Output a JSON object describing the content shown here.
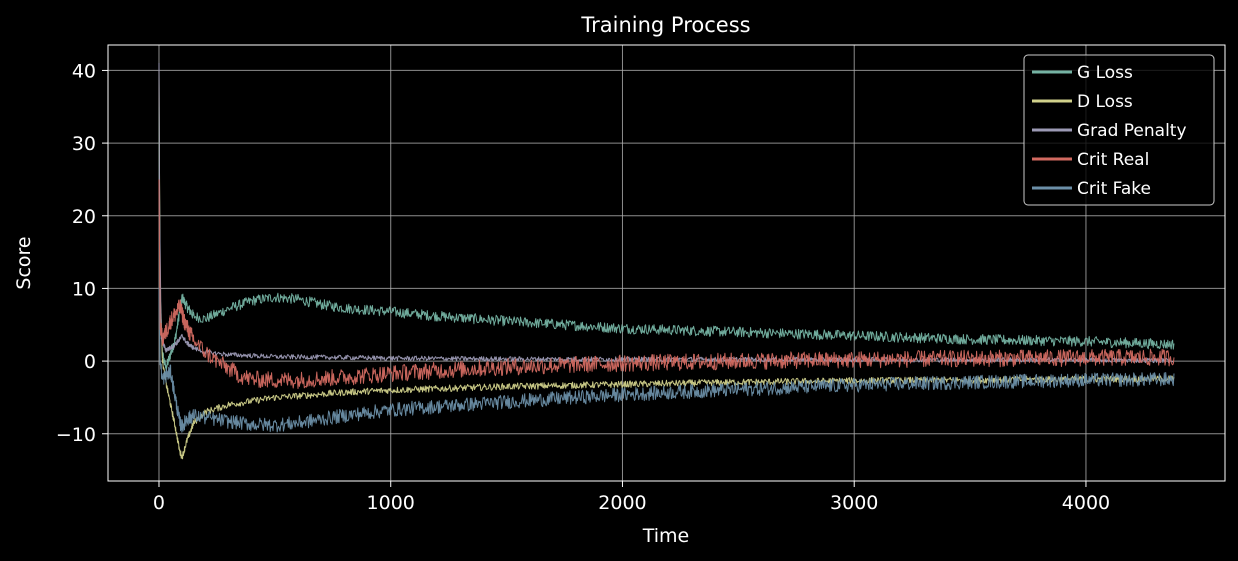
{
  "chart_data": {
    "type": "line",
    "title": "Training Process",
    "xlabel": "Time",
    "ylabel": "Score",
    "xlim": [
      -220,
      4600
    ],
    "ylim": [
      -16.5,
      43.5
    ],
    "xticks": [
      0,
      1000,
      2000,
      3000,
      4000
    ],
    "xtick_labels": [
      "0",
      "1000",
      "2000",
      "3000",
      "4000"
    ],
    "yticks": [
      -10,
      0,
      10,
      20,
      30,
      40
    ],
    "ytick_labels": [
      "−10",
      "0",
      "10",
      "20",
      "30",
      "40"
    ],
    "grid": true,
    "legend_position": "upper right",
    "background": "#000000",
    "series": [
      {
        "name": "G Loss",
        "color": "#75b3a3",
        "noise": 0.55,
        "x": [
          0,
          5,
          15,
          30,
          50,
          70,
          90,
          100,
          120,
          150,
          200,
          300,
          400,
          500,
          600,
          700,
          800,
          1000,
          1200,
          1500,
          2000,
          2500,
          3000,
          3500,
          4000,
          4380
        ],
        "y": [
          35,
          8,
          1,
          -1,
          1,
          3,
          7,
          8.8,
          7.5,
          6.2,
          5.8,
          7.2,
          8.3,
          8.8,
          8.5,
          7.8,
          7.3,
          6.8,
          6.2,
          5.5,
          4.5,
          4,
          3.5,
          3,
          2.7,
          2.3
        ]
      },
      {
        "name": "D Loss",
        "color": "#d1d18b",
        "noise": 0.35,
        "x": [
          0,
          5,
          15,
          30,
          50,
          70,
          90,
          100,
          120,
          150,
          200,
          300,
          400,
          500,
          600,
          800,
          1000,
          1500,
          2000,
          2500,
          3000,
          3500,
          4000,
          4380
        ],
        "y": [
          40,
          10,
          0,
          -3,
          -6,
          -9,
          -12.5,
          -13.2,
          -11,
          -8.5,
          -7,
          -6,
          -5.5,
          -5,
          -4.8,
          -4.3,
          -4,
          -3.5,
          -3.2,
          -2.9,
          -2.7,
          -2.6,
          -2.5,
          -2.4
        ]
      },
      {
        "name": "Grad Penalty",
        "color": "#9c9ab5",
        "noise": 0.25,
        "x": [
          0,
          3,
          10,
          30,
          60,
          90,
          100,
          120,
          150,
          200,
          300,
          500,
          800,
          1000,
          1500,
          2000,
          3000,
          4000,
          4380
        ],
        "y": [
          41,
          20,
          3,
          1.5,
          2,
          3,
          3.5,
          2.5,
          1.8,
          1.2,
          0.9,
          0.6,
          0.5,
          0.4,
          0.3,
          0.25,
          0.2,
          0.15,
          0.1
        ]
      },
      {
        "name": "Crit Real",
        "color": "#d26a61",
        "noise": 0.9,
        "x": [
          0,
          5,
          15,
          30,
          50,
          70,
          90,
          100,
          110,
          130,
          160,
          200,
          250,
          300,
          350,
          400,
          500,
          600,
          800,
          1000,
          1200,
          1500,
          2000,
          2500,
          3000,
          3500,
          4000,
          4380
        ],
        "y": [
          25,
          5,
          3,
          4,
          5.5,
          6.5,
          7.5,
          6.5,
          5.5,
          4,
          2.5,
          1.2,
          0,
          -1,
          -2,
          -2.5,
          -2.6,
          -2.6,
          -2.2,
          -1.7,
          -1.3,
          -0.8,
          -0.3,
          0,
          0.2,
          0.35,
          0.45,
          0.5
        ]
      },
      {
        "name": "Crit Fake",
        "color": "#6c8fa8",
        "noise": 0.75,
        "x": [
          0,
          5,
          15,
          30,
          50,
          70,
          90,
          100,
          120,
          150,
          200,
          300,
          400,
          500,
          600,
          800,
          1000,
          1500,
          2000,
          2500,
          3000,
          3500,
          4000,
          4380
        ],
        "y": [
          10,
          0,
          -2.5,
          -2,
          -1.5,
          -5,
          -8.5,
          -9,
          -8,
          -7.5,
          -7.8,
          -8.3,
          -8.7,
          -8.8,
          -8.5,
          -7.5,
          -6.7,
          -5.6,
          -4.6,
          -3.9,
          -3.3,
          -2.9,
          -2.6,
          -2.5
        ]
      }
    ]
  }
}
